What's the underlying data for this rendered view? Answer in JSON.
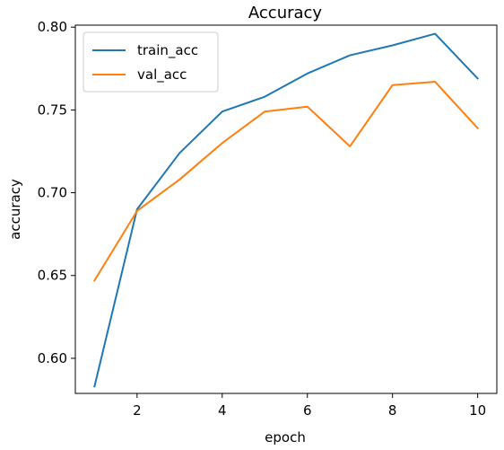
{
  "chart_data": {
    "type": "line",
    "title": "Accuracy",
    "xlabel": "epoch",
    "ylabel": "accuracy",
    "x": [
      1,
      2,
      3,
      4,
      5,
      6,
      7,
      8,
      9,
      10
    ],
    "xlim": [
      0.55,
      10.45
    ],
    "ylim": [
      0.5788,
      0.8012
    ],
    "xticks": [
      2,
      4,
      6,
      8,
      10
    ],
    "yticks": [
      0.6,
      0.65,
      0.7,
      0.75,
      0.8
    ],
    "xtick_labels": [
      "2",
      "4",
      "6",
      "8",
      "10"
    ],
    "ytick_labels": [
      "0.60",
      "0.65",
      "0.70",
      "0.75",
      "0.80"
    ],
    "grid": false,
    "legend_position": "top-left",
    "series": [
      {
        "name": "train_acc",
        "color": "#1f77b4",
        "values": [
          0.583,
          0.69,
          0.724,
          0.749,
          0.758,
          0.772,
          0.783,
          0.789,
          0.796,
          0.769
        ]
      },
      {
        "name": "val_acc",
        "color": "#ff7f0e",
        "values": [
          0.647,
          0.689,
          0.708,
          0.73,
          0.749,
          0.752,
          0.728,
          0.765,
          0.767,
          0.739
        ]
      }
    ]
  }
}
